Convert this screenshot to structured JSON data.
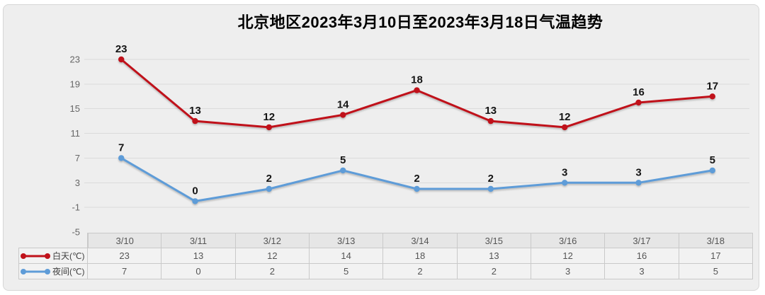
{
  "title": "北京地区2023年3月10日至2023年3月18日气温趋势",
  "chart_data": {
    "type": "line",
    "title": "北京地区2023年3月10日至2023年3月18日气温趋势",
    "categories": [
      "3/10",
      "3/11",
      "3/12",
      "3/13",
      "3/14",
      "3/15",
      "3/16",
      "3/17",
      "3/18"
    ],
    "series": [
      {
        "name": "白天(℃)",
        "key": "day",
        "values": [
          23,
          13,
          12,
          14,
          18,
          13,
          12,
          16,
          17
        ],
        "color": "#c0111a"
      },
      {
        "name": "夜间(℃)",
        "key": "night",
        "values": [
          7,
          0,
          2,
          5,
          2,
          2,
          3,
          3,
          5
        ],
        "color": "#5e9cd8"
      }
    ],
    "ylim": [
      -5,
      23
    ],
    "yticks": [
      23,
      19,
      15,
      11,
      7,
      3,
      -1,
      -5
    ],
    "grid": "horizontal",
    "data_labels": true,
    "legend_position": "data-table-left",
    "data_table": true
  },
  "colors": {
    "panel_background": "#eeeeee",
    "panel_border": "#d7d7d7",
    "gridline": "#dbdbdb",
    "table_header_background": "#e6e6e6",
    "table_cell_background": "#f2f2f2",
    "table_border": "#c9c9c9",
    "table_text": "#555555",
    "axis_tick_text": "#666666",
    "data_label_text": "#141414",
    "title_text": "#000000",
    "day_series": "#c0111a",
    "night_series": "#5e9cd8"
  }
}
